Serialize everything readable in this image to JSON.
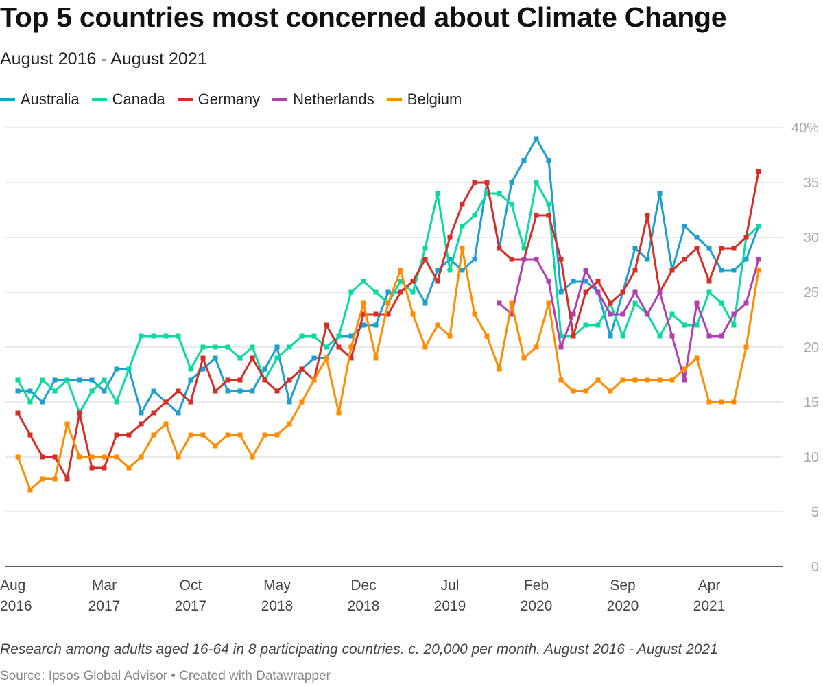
{
  "header": {
    "title": "Top 5 countries most concerned about Climate Change",
    "subtitle": "August 2016 - August 2021"
  },
  "footer": {
    "note": "Research among adults aged 16-64 in 8 participating countries. c. 20,000 per month. August 2016 - August 2021",
    "source": "Source: Ipsos Global Advisor • Created with Datawrapper"
  },
  "chart_data": {
    "type": "line",
    "title": "Top 5 countries most concerned about Climate Change",
    "subtitle": "August 2016 - August 2021",
    "x_start": "2016-08",
    "x_end": "2021-08",
    "x_frequency": "monthly",
    "x_ticks": [
      {
        "month_index": 0,
        "line1": "Aug",
        "line2": "2016"
      },
      {
        "month_index": 7,
        "line1": "Mar",
        "line2": "2017"
      },
      {
        "month_index": 14,
        "line1": "Oct",
        "line2": "2017"
      },
      {
        "month_index": 21,
        "line1": "May",
        "line2": "2018"
      },
      {
        "month_index": 28,
        "line1": "Dec",
        "line2": "2018"
      },
      {
        "month_index": 35,
        "line1": "Jul",
        "line2": "2019"
      },
      {
        "month_index": 42,
        "line1": "Feb",
        "line2": "2020"
      },
      {
        "month_index": 49,
        "line1": "Sep",
        "line2": "2020"
      },
      {
        "month_index": 56,
        "line1": "Apr",
        "line2": "2021"
      }
    ],
    "y_ticks": [
      "40%",
      "35",
      "30",
      "25",
      "20",
      "15",
      "10",
      "5",
      "0"
    ],
    "y_tick_values": [
      40,
      35,
      30,
      25,
      20,
      15,
      10,
      5,
      0
    ],
    "ylim": [
      0,
      40
    ],
    "y_axis_position": "right",
    "grid": true,
    "legend_position": "top-left",
    "series": [
      {
        "name": "Australia",
        "color": "#1a9fcf",
        "values": [
          16,
          16,
          15,
          17,
          17,
          17,
          17,
          16,
          18,
          18,
          14,
          16,
          15,
          14,
          17,
          18,
          19,
          16,
          16,
          16,
          18,
          20,
          15,
          18,
          19,
          19,
          21,
          21,
          22,
          22,
          25,
          25,
          26,
          24,
          27,
          28,
          27,
          28,
          35,
          29,
          35,
          37,
          39,
          37,
          25,
          26,
          26,
          25,
          21,
          25,
          29,
          28,
          34,
          27,
          31,
          30,
          29,
          27,
          27,
          28,
          31
        ]
      },
      {
        "name": "Canada",
        "color": "#0bd9a2",
        "values": [
          17,
          15,
          17,
          16,
          17,
          14,
          16,
          17,
          15,
          18,
          21,
          21,
          21,
          21,
          18,
          20,
          20,
          20,
          19,
          20,
          17,
          19,
          20,
          21,
          21,
          20,
          21,
          25,
          26,
          25,
          24,
          26,
          25,
          29,
          34,
          27,
          31,
          32,
          34,
          34,
          33,
          29,
          35,
          33,
          21,
          21,
          22,
          22,
          24,
          21,
          24,
          23,
          21,
          23,
          22,
          22,
          25,
          24,
          22,
          30,
          31
        ]
      },
      {
        "name": "Germany",
        "color": "#d62d27",
        "values": [
          14,
          12,
          10,
          10,
          8,
          14,
          9,
          9,
          12,
          12,
          13,
          14,
          15,
          16,
          15,
          19,
          16,
          17,
          17,
          19,
          17,
          16,
          17,
          18,
          17,
          22,
          20,
          19,
          23,
          23,
          23,
          25,
          26,
          28,
          26,
          30,
          33,
          35,
          35,
          29,
          28,
          28,
          32,
          32,
          28,
          21,
          25,
          26,
          24,
          25,
          27,
          32,
          25,
          27,
          28,
          29,
          26,
          29,
          29,
          30,
          36
        ]
      },
      {
        "name": "Netherlands",
        "color": "#b040b0",
        "values": [
          null,
          null,
          null,
          null,
          null,
          null,
          null,
          null,
          null,
          null,
          null,
          null,
          null,
          null,
          null,
          null,
          null,
          null,
          null,
          null,
          null,
          null,
          null,
          null,
          null,
          null,
          null,
          null,
          null,
          null,
          null,
          null,
          null,
          null,
          null,
          null,
          null,
          null,
          null,
          24,
          23,
          28,
          28,
          26,
          20,
          23,
          27,
          25,
          23,
          23,
          25,
          23,
          25,
          21,
          17,
          24,
          21,
          21,
          23,
          24,
          28
        ]
      },
      {
        "name": "Belgium",
        "color": "#ff8c00",
        "values": [
          10,
          7,
          8,
          8,
          13,
          10,
          10,
          10,
          10,
          9,
          10,
          12,
          13,
          10,
          12,
          12,
          11,
          12,
          12,
          10,
          12,
          12,
          13,
          15,
          17,
          19,
          14,
          20,
          24,
          19,
          24,
          27,
          23,
          20,
          22,
          21,
          29,
          23,
          21,
          18,
          24,
          19,
          20,
          24,
          17,
          16,
          16,
          17,
          16,
          17,
          17,
          17,
          17,
          17,
          18,
          19,
          15,
          15,
          15,
          20,
          27
        ]
      }
    ]
  }
}
